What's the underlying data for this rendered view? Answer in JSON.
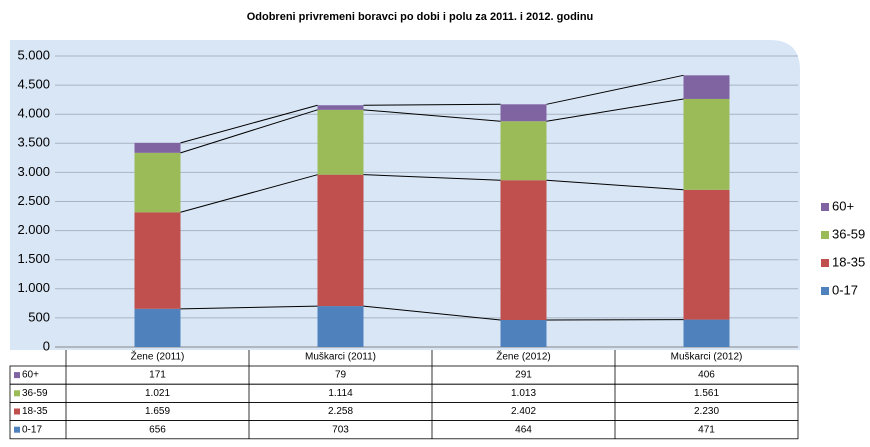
{
  "chart_data": {
    "type": "stacked_bar",
    "title": "Odobreni privremeni boravci po dobi i polu za 2011. i 2012. godinu",
    "categories": [
      "Žene (2011)",
      "Muškarci (2011)",
      "Žene (2012)",
      "Muškarci (2012)"
    ],
    "series": [
      {
        "name": "0-17",
        "color": "#4f81bd",
        "values": [
          656,
          703,
          464,
          471
        ]
      },
      {
        "name": "18-35",
        "color": "#c0504d",
        "values": [
          1659,
          2258,
          2402,
          2230
        ],
        "value_labels": [
          "1.659",
          "2.258",
          "2.402",
          "2.230"
        ]
      },
      {
        "name": "36-59",
        "color": "#9bbb59",
        "values": [
          1021,
          1114,
          1013,
          1561
        ],
        "value_labels": [
          "1.021",
          "1.114",
          "1.013",
          "1.561"
        ]
      },
      {
        "name": "60+",
        "color": "#8064a2",
        "values": [
          171,
          79,
          291,
          406
        ]
      }
    ],
    "ylim": [
      0,
      5000
    ],
    "yticks": [
      0,
      500,
      {
        "value": 1000,
        "label": "1.000"
      },
      {
        "value": 1500,
        "label": "1.500"
      },
      {
        "value": 2000,
        "label": "2.000"
      },
      {
        "value": 2500,
        "label": "2.500"
      },
      {
        "value": 3000,
        "label": "3.000"
      },
      {
        "value": 3500,
        "label": "3.500"
      },
      {
        "value": 4000,
        "label": "4.000"
      },
      {
        "value": 4500,
        "label": "4.500"
      },
      {
        "value": 5000,
        "label": "5.000"
      }
    ],
    "grid": true,
    "legend": "right",
    "data_table": true
  }
}
